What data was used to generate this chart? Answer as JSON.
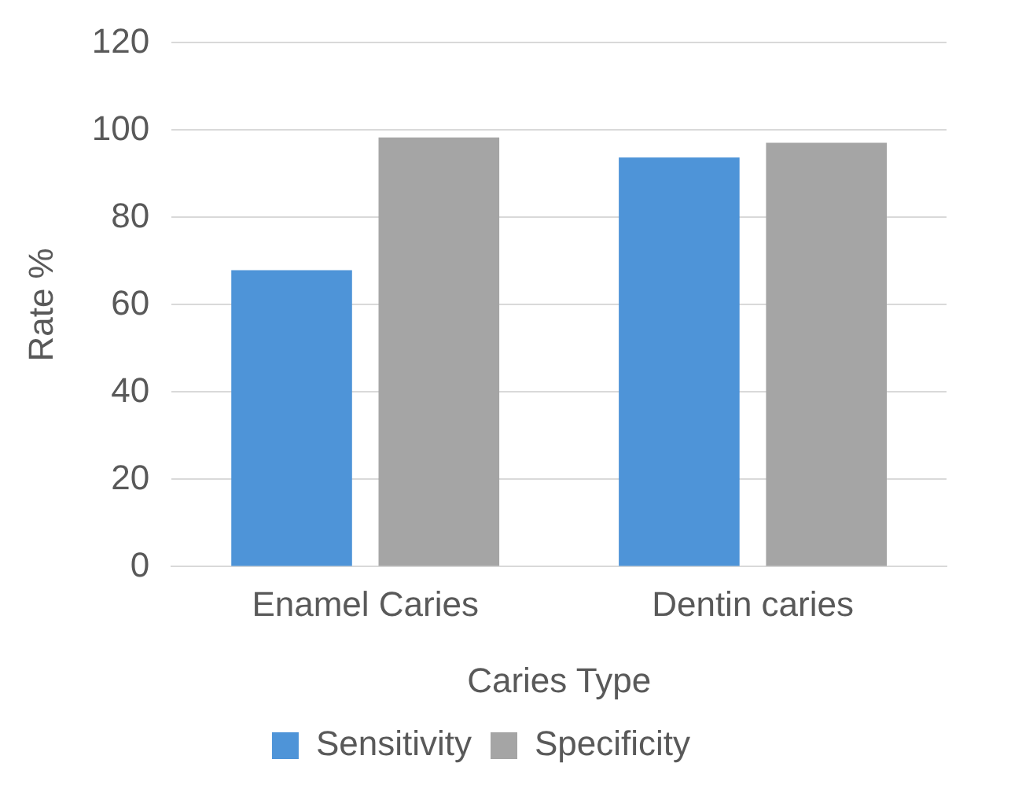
{
  "chart_data": {
    "type": "bar",
    "xlabel": "Caries Type",
    "ylabel": "Rate %",
    "categories": [
      "Enamel Caries",
      "Dentin caries"
    ],
    "series": [
      {
        "name": "Sensitivity",
        "color": "#4e94d8",
        "values": [
          67.9,
          93.7
        ]
      },
      {
        "name": "Specificity",
        "color": "#a5a5a5",
        "values": [
          98.3,
          97.1
        ]
      }
    ],
    "ylim": [
      0,
      120
    ],
    "yticks": [
      0,
      20,
      40,
      60,
      80,
      100,
      120
    ],
    "grid": "y",
    "legend": "bottom"
  }
}
